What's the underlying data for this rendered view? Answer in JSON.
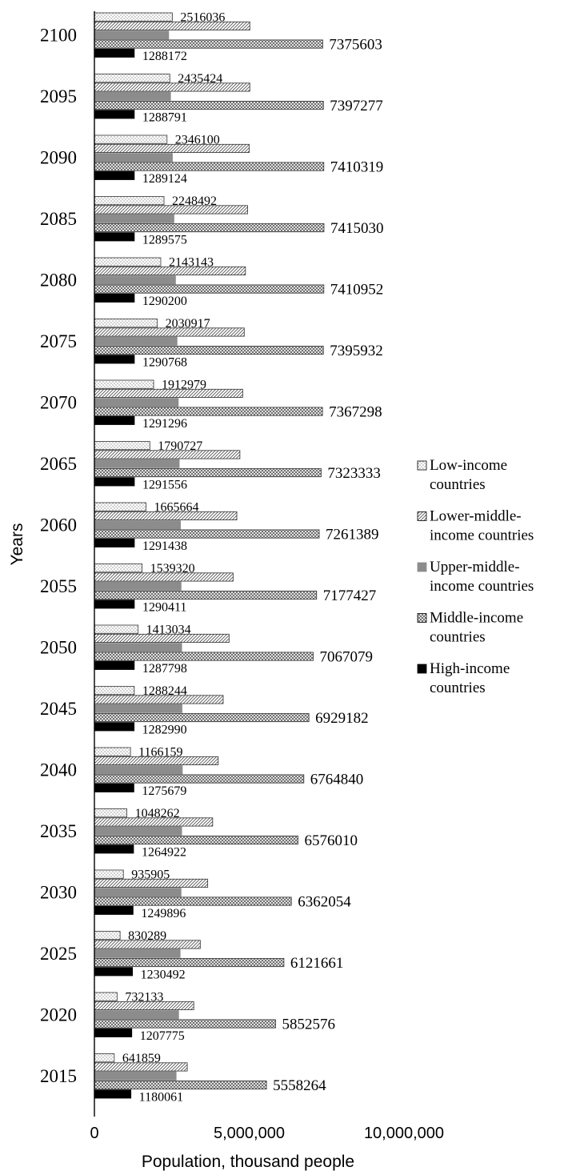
{
  "chart_data": {
    "type": "bar",
    "orientation": "horizontal",
    "xlabel": "Population, thousand people",
    "ylabel": "Years",
    "xlim": [
      0,
      10000000
    ],
    "x_ticks": [
      {
        "value": 0,
        "label": "0"
      },
      {
        "value": 5000000,
        "label": "5,000,000"
      },
      {
        "value": 10000000,
        "label": "10,000,000"
      }
    ],
    "grid": false,
    "legend_position": "right",
    "categories": [
      "2100",
      "2095",
      "2090",
      "2085",
      "2080",
      "2075",
      "2070",
      "2065",
      "2060",
      "2055",
      "2050",
      "2045",
      "2040",
      "2035",
      "2030",
      "2025",
      "2020",
      "2015"
    ],
    "series": [
      {
        "name": "Low-income countries",
        "pattern": "dots",
        "values": [
          2516036,
          2435424,
          2346100,
          2248492,
          2143143,
          2030917,
          1912979,
          1790727,
          1665664,
          1539320,
          1413034,
          1288244,
          1166159,
          1048262,
          935905,
          830289,
          732133,
          641859
        ],
        "labels": [
          "2516036",
          "2435424",
          "2346100",
          "2248492",
          "2143143",
          "2030917",
          "1912979",
          "1790727",
          "1665664",
          "1539320",
          "1413034",
          "1288244",
          "1166159",
          "1048262",
          "935905",
          "830289",
          "732133",
          "641859"
        ]
      },
      {
        "name": "Lower-middle-income countries",
        "pattern": "diagonal",
        "values": [
          5020000,
          5020000,
          5000000,
          4950000,
          4880000,
          4840000,
          4790000,
          4700000,
          4600000,
          4480000,
          4350000,
          4160000,
          4000000,
          3820000,
          3660000,
          3420000,
          3210000,
          3000000
        ],
        "labels": [
          "",
          "",
          "",
          "",
          "",
          "",
          "",
          "",
          "",
          "",
          "",
          "",
          "",
          "",
          "",
          "",
          "",
          ""
        ]
      },
      {
        "name": "Upper-middle-income countries",
        "pattern": "solid-gray",
        "values": [
          2400000,
          2460000,
          2520000,
          2570000,
          2620000,
          2670000,
          2710000,
          2740000,
          2780000,
          2800000,
          2820000,
          2830000,
          2840000,
          2820000,
          2800000,
          2770000,
          2720000,
          2640000
        ],
        "labels": [
          "",
          "",
          "",
          "",
          "",
          "",
          "",
          "",
          "",
          "",
          "",
          "",
          "",
          "",
          "",
          "",
          "",
          ""
        ]
      },
      {
        "name": "Middle-income countries",
        "pattern": "crosshatch",
        "values": [
          7375603,
          7397277,
          7410319,
          7415030,
          7410952,
          7395932,
          7367298,
          7323333,
          7261389,
          7177427,
          7067079,
          6929182,
          6764840,
          6576010,
          6362054,
          6121661,
          5852576,
          5558264
        ],
        "labels": [
          "7375603",
          "7397277",
          "7410319",
          "7415030",
          "7410952",
          "7395932",
          "7367298",
          "7323333",
          "7261389",
          "7177427",
          "7067079",
          "6929182",
          "6764840",
          "6576010",
          "6362054",
          "6121661",
          "5852576",
          "5558264"
        ]
      },
      {
        "name": "High-income countries",
        "pattern": "solid-black",
        "values": [
          1288172,
          1288791,
          1289124,
          1289575,
          1290200,
          1290768,
          1291296,
          1291556,
          1291438,
          1290411,
          1287798,
          1282990,
          1275679,
          1264922,
          1249896,
          1230492,
          1207775,
          1180061
        ],
        "labels": [
          "1288172",
          "1288791",
          "1289124",
          "1289575",
          "1290200",
          "1290768",
          "1291296",
          "1291556",
          "1291438",
          "1290411",
          "1287798",
          "1282990",
          "1275679",
          "1264922",
          "1249896",
          "1230492",
          "1207775",
          "1180061"
        ]
      }
    ],
    "legend": [
      {
        "lines": [
          "Low-income",
          "countries"
        ],
        "pattern": "dots"
      },
      {
        "lines": [
          "Lower-middle-",
          "income countries"
        ],
        "pattern": "diagonal"
      },
      {
        "lines": [
          "Upper-middle-",
          "income countries"
        ],
        "pattern": "solid-gray"
      },
      {
        "lines": [
          "Middle-income",
          "countries"
        ],
        "pattern": "crosshatch"
      },
      {
        "lines": [
          "High-income",
          "countries"
        ],
        "pattern": "solid-black"
      }
    ],
    "colors": {
      "text": "#000000",
      "axis": "#000000",
      "gray_fill": "#8c8c8c",
      "black_fill": "#000000",
      "pattern_ink": "#555555"
    }
  }
}
